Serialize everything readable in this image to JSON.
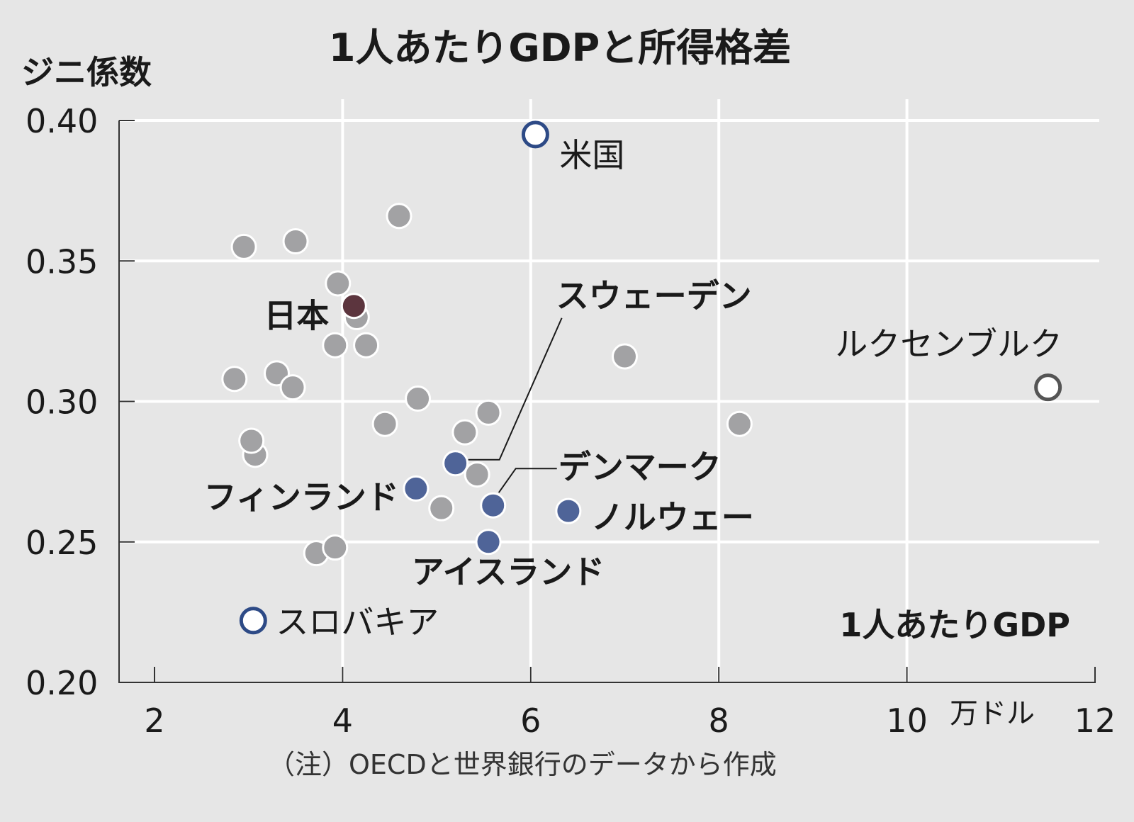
{
  "chart_data": {
    "type": "scatter",
    "title": "1人あたりGDPと所得格差",
    "ylabel": "ジニ係数",
    "xlabel": "1人あたりGDP",
    "x_unit": "万ドル",
    "note": "（注）OECDと世界銀行のデータから作成",
    "xlim": [
      2,
      12
    ],
    "ylim": [
      0.2,
      0.4
    ],
    "x_ticks": [
      "2",
      "4",
      "6",
      "8",
      "10",
      "12"
    ],
    "y_ticks": [
      "0.20",
      "0.25",
      "0.30",
      "0.35",
      "0.40"
    ],
    "grid": true,
    "colors": {
      "background": "#e6e6e6",
      "grid": "#ffffff",
      "other_countries": "#a2a2a4",
      "nordic": "#4f6498",
      "japan": "#5c353e",
      "hollow_blue_outline": "#2d4a86",
      "hollow_gray_outline": "#555555"
    },
    "labeled_points": [
      {
        "id": "usa",
        "label": "米国",
        "x": 6.05,
        "y": 0.395,
        "style": "hollow-blue",
        "weight": "normal"
      },
      {
        "id": "japan",
        "label": "日本",
        "x": 4.12,
        "y": 0.334,
        "style": "japan",
        "weight": "bold"
      },
      {
        "id": "sweden",
        "label": "スウェーデン",
        "x": 5.2,
        "y": 0.278,
        "style": "nordic",
        "weight": "bold"
      },
      {
        "id": "denmark",
        "label": "デンマーク",
        "x": 5.6,
        "y": 0.263,
        "style": "nordic",
        "weight": "bold"
      },
      {
        "id": "finland",
        "label": "フィンランド",
        "x": 4.78,
        "y": 0.269,
        "style": "nordic",
        "weight": "bold"
      },
      {
        "id": "norway",
        "label": "ノルウェー",
        "x": 6.4,
        "y": 0.261,
        "style": "nordic",
        "weight": "bold"
      },
      {
        "id": "iceland",
        "label": "アイスランド",
        "x": 5.55,
        "y": 0.25,
        "style": "nordic",
        "weight": "bold"
      },
      {
        "id": "luxembourg",
        "label": "ルクセンブルク",
        "x": 11.5,
        "y": 0.305,
        "style": "hollow-gray",
        "weight": "normal"
      },
      {
        "id": "slovakia",
        "label": "スロバキア",
        "x": 3.05,
        "y": 0.222,
        "style": "hollow-blue",
        "weight": "normal"
      }
    ],
    "other_points": [
      {
        "x": 4.6,
        "y": 0.366
      },
      {
        "x": 2.95,
        "y": 0.355
      },
      {
        "x": 3.5,
        "y": 0.357
      },
      {
        "x": 3.95,
        "y": 0.342
      },
      {
        "x": 4.15,
        "y": 0.33
      },
      {
        "x": 3.92,
        "y": 0.32
      },
      {
        "x": 4.25,
        "y": 0.32
      },
      {
        "x": 2.85,
        "y": 0.308
      },
      {
        "x": 3.3,
        "y": 0.31
      },
      {
        "x": 3.47,
        "y": 0.305
      },
      {
        "x": 4.8,
        "y": 0.301
      },
      {
        "x": 4.45,
        "y": 0.292
      },
      {
        "x": 5.55,
        "y": 0.296
      },
      {
        "x": 5.3,
        "y": 0.289
      },
      {
        "x": 3.07,
        "y": 0.281
      },
      {
        "x": 3.03,
        "y": 0.286
      },
      {
        "x": 5.43,
        "y": 0.274
      },
      {
        "x": 5.05,
        "y": 0.262
      },
      {
        "x": 3.72,
        "y": 0.246
      },
      {
        "x": 3.92,
        "y": 0.248
      },
      {
        "x": 7.0,
        "y": 0.316
      },
      {
        "x": 8.22,
        "y": 0.292
      }
    ]
  }
}
